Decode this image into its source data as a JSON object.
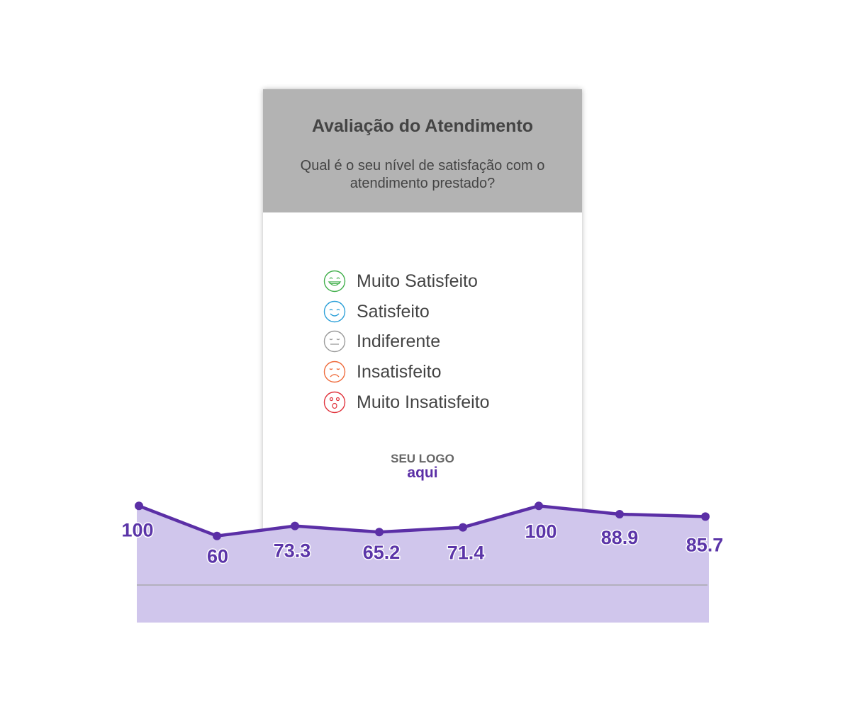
{
  "card": {
    "title": "Avaliação do Atendimento",
    "subtitle": "Qual é o seu nível de satisfação com o atendimento prestado?",
    "options": [
      {
        "label": "Muito Satisfeito",
        "icon": "very-happy-face-icon",
        "color": "#3fae49"
      },
      {
        "label": "Satisfeito",
        "icon": "happy-face-icon",
        "color": "#2a9fd8"
      },
      {
        "label": "Indiferente",
        "icon": "neutral-face-icon",
        "color": "#9a9a9a"
      },
      {
        "label": "Insatisfeito",
        "icon": "sad-face-icon",
        "color": "#ef6a3a"
      },
      {
        "label": "Muito Insatisfeito",
        "icon": "shocked-face-icon",
        "color": "#e0313a"
      }
    ],
    "logo": {
      "top": "SEU LOGO",
      "bottom": "aqui"
    },
    "header_color": "#b3b3b3"
  },
  "chart_data": {
    "type": "area",
    "values": [
      100,
      60,
      73.3,
      65.2,
      71.4,
      100,
      88.9,
      85.7
    ],
    "data_labels": [
      "100",
      "60",
      "73.3",
      "65.2",
      "71.4",
      "100",
      "88.9",
      "85.7"
    ],
    "line_color": "#5b2fa6",
    "fill_color": "#d0c6ec",
    "baseline_color": "#b3b0bd"
  }
}
